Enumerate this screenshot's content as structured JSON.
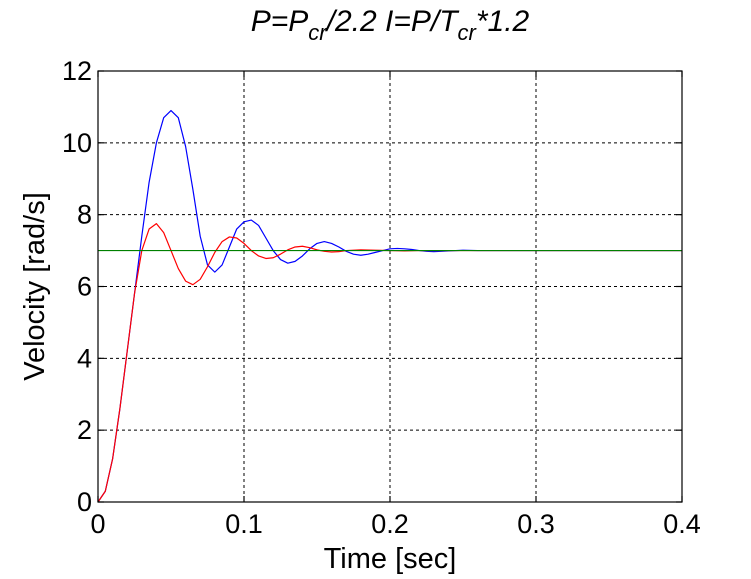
{
  "chart_data": {
    "type": "line",
    "title": {
      "parts": [
        {
          "text": "P=P",
          "sub": false
        },
        {
          "text": "cr",
          "sub": true
        },
        {
          "text": "/2.2  I=P/T",
          "sub": false
        },
        {
          "text": "cr",
          "sub": true
        },
        {
          "text": "*1.2",
          "sub": false
        }
      ]
    },
    "xlabel": "Time [sec]",
    "ylabel": "Velocity [rad/s]",
    "xlim": [
      0,
      0.4
    ],
    "ylim": [
      0,
      12
    ],
    "xticks": [
      0,
      0.1,
      0.2,
      0.3,
      0.4
    ],
    "xtick_labels": [
      "0",
      "0.1",
      "0.2",
      "0.3",
      "0.4"
    ],
    "yticks": [
      0,
      2,
      4,
      6,
      8,
      10,
      12
    ],
    "ytick_labels": [
      "0",
      "2",
      "4",
      "6",
      "8",
      "10",
      "12"
    ],
    "grid": true,
    "series": [
      {
        "color": "#0000ff",
        "x": [
          0,
          0.005,
          0.01,
          0.015,
          0.02,
          0.025,
          0.03,
          0.035,
          0.04,
          0.045,
          0.05,
          0.055,
          0.06,
          0.065,
          0.07,
          0.075,
          0.08,
          0.085,
          0.09,
          0.095,
          0.1,
          0.105,
          0.11,
          0.115,
          0.12,
          0.125,
          0.13,
          0.135,
          0.14,
          0.145,
          0.15,
          0.155,
          0.16,
          0.165,
          0.17,
          0.175,
          0.18,
          0.185,
          0.19,
          0.195,
          0.2,
          0.205,
          0.21,
          0.215,
          0.22,
          0.225,
          0.23,
          0.24,
          0.25,
          0.26,
          0.28,
          0.3,
          0.35,
          0.4
        ],
        "y": [
          0,
          0.3,
          1.2,
          2.6,
          4.2,
          5.8,
          7.4,
          8.9,
          10.0,
          10.7,
          10.9,
          10.7,
          9.9,
          8.7,
          7.4,
          6.6,
          6.4,
          6.6,
          7.1,
          7.6,
          7.8,
          7.85,
          7.7,
          7.35,
          7.0,
          6.75,
          6.65,
          6.7,
          6.85,
          7.05,
          7.2,
          7.25,
          7.2,
          7.1,
          6.98,
          6.9,
          6.87,
          6.9,
          6.95,
          7.0,
          7.05,
          7.06,
          7.05,
          7.03,
          7.0,
          6.98,
          6.97,
          6.99,
          7.01,
          7.0,
          7.0,
          7.0,
          7.0,
          7.0
        ]
      },
      {
        "color": "#ff0000",
        "x": [
          0,
          0.005,
          0.01,
          0.015,
          0.02,
          0.025,
          0.03,
          0.035,
          0.04,
          0.045,
          0.05,
          0.055,
          0.06,
          0.065,
          0.07,
          0.075,
          0.08,
          0.085,
          0.09,
          0.095,
          0.1,
          0.105,
          0.11,
          0.115,
          0.12,
          0.125,
          0.13,
          0.135,
          0.14,
          0.145,
          0.15,
          0.155,
          0.16,
          0.165,
          0.17,
          0.18,
          0.19,
          0.2,
          0.21,
          0.22,
          0.23,
          0.25,
          0.3,
          0.35,
          0.4
        ],
        "y": [
          0,
          0.3,
          1.2,
          2.6,
          4.2,
          5.8,
          7.0,
          7.6,
          7.75,
          7.5,
          7.0,
          6.5,
          6.15,
          6.05,
          6.2,
          6.55,
          6.95,
          7.25,
          7.38,
          7.35,
          7.2,
          7.0,
          6.85,
          6.78,
          6.8,
          6.9,
          7.02,
          7.1,
          7.12,
          7.08,
          7.02,
          6.98,
          6.96,
          6.97,
          7.0,
          7.02,
          7.01,
          7.0,
          6.99,
          7.0,
          7.0,
          7.0,
          7.0,
          7.0,
          7.0
        ]
      },
      {
        "color": "#008000",
        "x": [
          0,
          0.4
        ],
        "y": [
          7,
          7
        ]
      }
    ]
  }
}
